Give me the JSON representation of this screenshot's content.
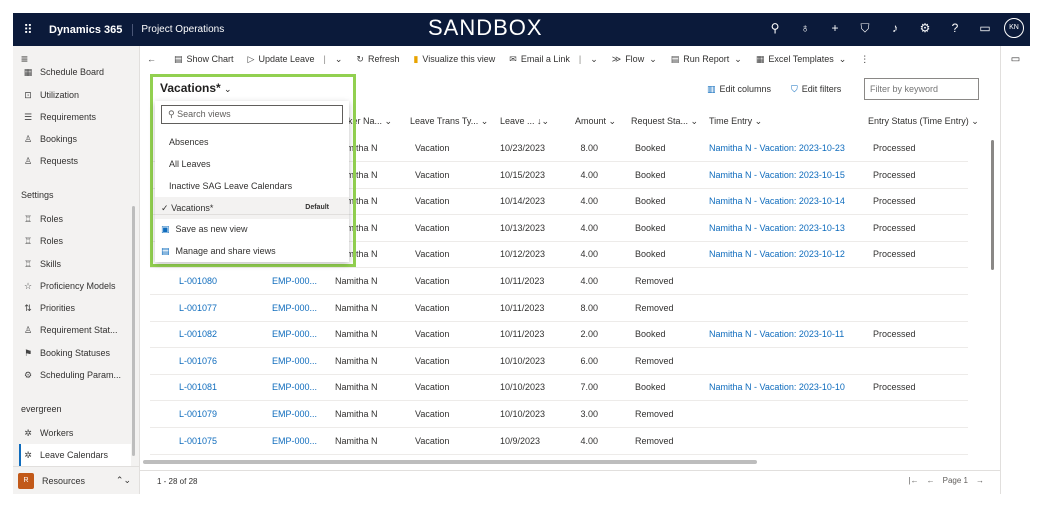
{
  "topbar": {
    "app_name": "Dynamics 365",
    "area_name": "Project Operations",
    "banner": "SANDBOX",
    "user_initials": "KN"
  },
  "sidebar": {
    "items_top": [
      {
        "label": "Schedule Board",
        "icon": "calendar-icon"
      },
      {
        "label": "Utilization",
        "icon": "chart-icon"
      },
      {
        "label": "Requirements",
        "icon": "list-icon"
      },
      {
        "label": "Bookings",
        "icon": "people-icon"
      },
      {
        "label": "Requests",
        "icon": "people-icon"
      }
    ],
    "settings_heading": "Settings",
    "settings_items": [
      {
        "label": "Roles",
        "icon": "roles-icon"
      },
      {
        "label": "Roles",
        "icon": "roles-icon"
      },
      {
        "label": "Skills",
        "icon": "skills-icon"
      },
      {
        "label": "Proficiency Models",
        "icon": "star-icon"
      },
      {
        "label": "Priorities",
        "icon": "sort-icon"
      },
      {
        "label": "Requirement Stat...",
        "icon": "people-icon"
      },
      {
        "label": "Booking Statuses",
        "icon": "flag-icon"
      },
      {
        "label": "Scheduling Param...",
        "icon": "gear-icon"
      }
    ],
    "evergreen_heading": "evergreen",
    "evergreen_items": [
      {
        "label": "Workers",
        "icon": "puzzle-icon"
      },
      {
        "label": "Leave Calendars",
        "icon": "puzzle-icon"
      }
    ],
    "area_switcher": {
      "badge": "R",
      "label": "Resources"
    }
  },
  "commands": {
    "show_chart": "Show Chart",
    "update_leave": "Update Leave",
    "refresh": "Refresh",
    "visualize": "Visualize this view",
    "email_link": "Email a Link",
    "flow": "Flow",
    "run_report": "Run Report",
    "excel_templates": "Excel Templates"
  },
  "view": {
    "title": "Vacations*",
    "edit_columns": "Edit columns",
    "edit_filters": "Edit filters",
    "keyword_placeholder": "Filter by keyword"
  },
  "dropdown": {
    "search_placeholder": "Search views",
    "views": [
      "Absences",
      "All Leaves",
      "Inactive SAG Leave Calendars"
    ],
    "selected": "Vacations*",
    "default_label": "Default",
    "save_as_new": "Save as new view",
    "manage_share": "Manage and share views"
  },
  "grid": {
    "headers": {
      "worker_name": "rker Na...",
      "leave_trans_type": "Leave Trans Ty...",
      "leave_date": "Leave ...",
      "amount": "Amount",
      "request_status": "Request Sta...",
      "time_entry": "Time Entry",
      "entry_status": "Entry Status (Time Entry)"
    },
    "rows": [
      {
        "id": "",
        "emp": "",
        "worker": "Namitha N",
        "type": "Vacation",
        "date": "10/23/2023",
        "amount": "8.00",
        "status": "Booked",
        "time_entry": "Namitha N - Vacation: 2023-10-23",
        "entry_status": "Processed"
      },
      {
        "id": "",
        "emp": "",
        "worker": "Namitha N",
        "type": "Vacation",
        "date": "10/15/2023",
        "amount": "4.00",
        "status": "Booked",
        "time_entry": "Namitha N - Vacation: 2023-10-15",
        "entry_status": "Processed"
      },
      {
        "id": "",
        "emp": "",
        "worker": "Namitha N",
        "type": "Vacation",
        "date": "10/14/2023",
        "amount": "4.00",
        "status": "Booked",
        "time_entry": "Namitha N - Vacation: 2023-10-14",
        "entry_status": "Processed"
      },
      {
        "id": "",
        "emp": "",
        "worker": "Namitha N",
        "type": "Vacation",
        "date": "10/13/2023",
        "amount": "4.00",
        "status": "Booked",
        "time_entry": "Namitha N - Vacation: 2023-10-13",
        "entry_status": "Processed"
      },
      {
        "id": "",
        "emp": "",
        "worker": "Namitha N",
        "type": "Vacation",
        "date": "10/12/2023",
        "amount": "4.00",
        "status": "Booked",
        "time_entry": "Namitha N - Vacation: 2023-10-12",
        "entry_status": "Processed"
      },
      {
        "id": "L-001080",
        "emp": "EMP-000...",
        "worker": "Namitha N",
        "type": "Vacation",
        "date": "10/11/2023",
        "amount": "4.00",
        "status": "Removed",
        "time_entry": "",
        "entry_status": ""
      },
      {
        "id": "L-001077",
        "emp": "EMP-000...",
        "worker": "Namitha N",
        "type": "Vacation",
        "date": "10/11/2023",
        "amount": "8.00",
        "status": "Removed",
        "time_entry": "",
        "entry_status": ""
      },
      {
        "id": "L-001082",
        "emp": "EMP-000...",
        "worker": "Namitha N",
        "type": "Vacation",
        "date": "10/11/2023",
        "amount": "2.00",
        "status": "Booked",
        "time_entry": "Namitha N - Vacation: 2023-10-11",
        "entry_status": "Processed"
      },
      {
        "id": "L-001076",
        "emp": "EMP-000...",
        "worker": "Namitha N",
        "type": "Vacation",
        "date": "10/10/2023",
        "amount": "6.00",
        "status": "Removed",
        "time_entry": "",
        "entry_status": ""
      },
      {
        "id": "L-001081",
        "emp": "EMP-000...",
        "worker": "Namitha N",
        "type": "Vacation",
        "date": "10/10/2023",
        "amount": "7.00",
        "status": "Booked",
        "time_entry": "Namitha N - Vacation: 2023-10-10",
        "entry_status": "Processed"
      },
      {
        "id": "L-001079",
        "emp": "EMP-000...",
        "worker": "Namitha N",
        "type": "Vacation",
        "date": "10/10/2023",
        "amount": "3.00",
        "status": "Removed",
        "time_entry": "",
        "entry_status": ""
      },
      {
        "id": "L-001075",
        "emp": "EMP-000...",
        "worker": "Namitha N",
        "type": "Vacation",
        "date": "10/9/2023",
        "amount": "4.00",
        "status": "Removed",
        "time_entry": "",
        "entry_status": ""
      }
    ]
  },
  "footer": {
    "record_count": "1 - 28 of 28",
    "page_label": "Page 1"
  },
  "colors": {
    "topbar": "#0b1a3a",
    "link": "#0f6cbd",
    "highlight": "#92d050"
  }
}
